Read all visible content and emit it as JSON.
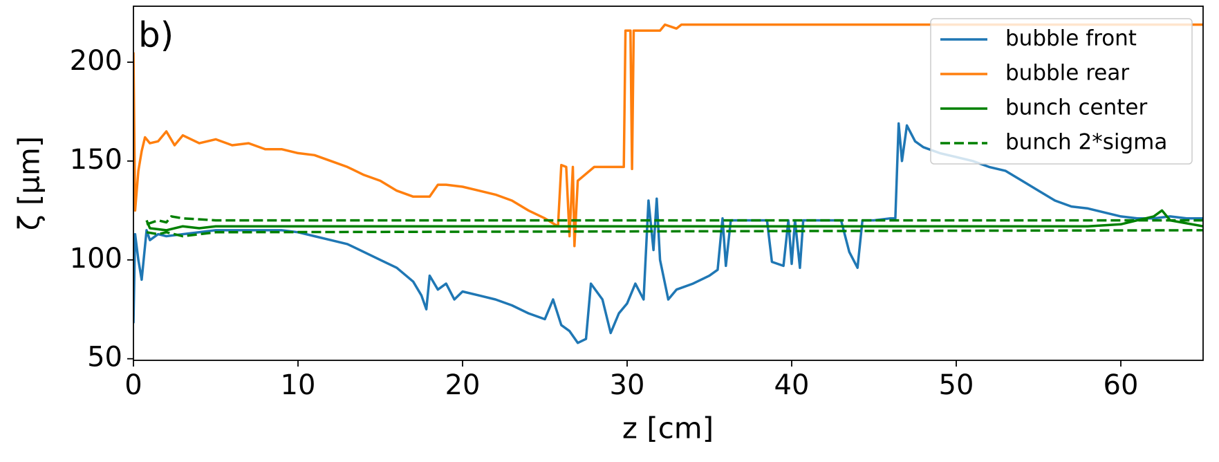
{
  "chart_data": {
    "type": "line",
    "annotation": "b)",
    "x_label": "z [cm]",
    "y_label": "ζ [μm]",
    "xlim": [
      0,
      65
    ],
    "ylim": [
      49.2,
      228.3
    ],
    "xticks": [
      0,
      10,
      20,
      30,
      40,
      50,
      60
    ],
    "yticks": [
      50,
      100,
      150,
      200
    ],
    "legend": "upper right",
    "series": [
      {
        "name": "bubble front",
        "color": "#1f77b4",
        "dashed": false,
        "x": [
          0,
          0.1,
          0.3,
          0.5,
          0.8,
          1,
          1.5,
          2,
          3,
          4,
          5,
          6,
          7,
          8,
          9,
          10,
          11,
          12,
          13,
          14,
          15,
          16,
          17,
          17.5,
          17.8,
          18,
          18.5,
          19,
          19.5,
          20,
          21,
          22,
          23,
          24,
          25,
          25.5,
          26,
          26.5,
          27,
          27.5,
          27.8,
          28.5,
          29,
          29.5,
          30,
          30.5,
          31,
          31.3,
          31.6,
          31.8,
          32,
          32.5,
          33,
          34,
          35,
          35.5,
          35.8,
          36,
          36.3,
          37,
          38,
          38.5,
          38.8,
          39.5,
          39.8,
          40,
          40.2,
          40.5,
          40.7,
          41,
          42,
          43,
          43.5,
          44,
          44.3,
          45,
          46,
          46.3,
          46.5,
          46.7,
          47,
          47.5,
          48,
          49,
          50,
          51,
          52,
          53,
          54,
          55,
          56,
          57,
          58,
          59,
          60,
          61,
          62,
          63,
          64,
          65
        ],
        "values": [
          68,
          113,
          100,
          90,
          115,
          110,
          113,
          112,
          113,
          114,
          115,
          115,
          115,
          115,
          115,
          114,
          112,
          110,
          108,
          104,
          100,
          96,
          89,
          82,
          75,
          92,
          85,
          88,
          80,
          84,
          82,
          80,
          77,
          73,
          70,
          80,
          67,
          64,
          58,
          60,
          88,
          80,
          63,
          73,
          78,
          88,
          80,
          130,
          105,
          131,
          100,
          80,
          85,
          88,
          92,
          95,
          121,
          97,
          120,
          120,
          120,
          120,
          99,
          97,
          120,
          98,
          120,
          96,
          120,
          120,
          120,
          120,
          104,
          96,
          120,
          120,
          121,
          121,
          169,
          150,
          168,
          160,
          157,
          154,
          152,
          150,
          147,
          145,
          140,
          135,
          130,
          127,
          126,
          124,
          122,
          121,
          121,
          122,
          121,
          121
        ]
      },
      {
        "name": "bubble rear",
        "color": "#ff7f0e",
        "dashed": false,
        "x": [
          0,
          0.1,
          0.3,
          0.5,
          0.7,
          1,
          1.5,
          2,
          2.5,
          3,
          4,
          5,
          6,
          7,
          8,
          9,
          10,
          11,
          12,
          13,
          14,
          15,
          16,
          17,
          18,
          18.5,
          19,
          20,
          21,
          22,
          23,
          24,
          25,
          25.8,
          26,
          26.3,
          26.5,
          26.7,
          26.8,
          27,
          28,
          29,
          29.8,
          29.9,
          30.2,
          30.3,
          30.4,
          31,
          32,
          32.3,
          33,
          33.3,
          40,
          50,
          60,
          65
        ],
        "values": [
          205,
          125,
          145,
          155,
          162,
          159,
          160,
          165,
          158,
          163,
          159,
          161,
          158,
          159,
          156,
          156,
          154,
          153,
          150,
          147,
          143,
          140,
          135,
          132,
          132,
          138,
          138,
          137,
          135,
          133,
          130,
          125,
          121,
          117,
          148,
          147,
          112,
          147,
          107,
          140,
          147,
          147,
          147,
          216,
          216,
          146,
          216,
          216,
          216,
          219,
          217,
          219,
          219,
          219,
          219,
          219
        ]
      },
      {
        "name": "bunch center",
        "color": "#008000",
        "dashed": false,
        "x": [
          0.8,
          1,
          2,
          3,
          4,
          5,
          58,
          60,
          61,
          62,
          62.5,
          63,
          65
        ],
        "values": [
          120,
          116,
          115,
          117,
          116,
          117,
          117,
          118,
          120,
          122,
          125,
          120,
          117
        ]
      },
      {
        "name": "bunch 2*sigma",
        "color": "#008000",
        "dashed": true,
        "x": [
          0.8,
          1.5,
          2,
          2.3,
          3,
          5,
          65
        ],
        "values": [
          118,
          120,
          119,
          122,
          121,
          120,
          120
        ]
      },
      {
        "color": "#008000",
        "dashed": true,
        "x": [
          0.8,
          1.5,
          2,
          3,
          5,
          65
        ],
        "values": [
          114,
          113,
          114,
          112,
          114,
          115
        ]
      }
    ]
  }
}
